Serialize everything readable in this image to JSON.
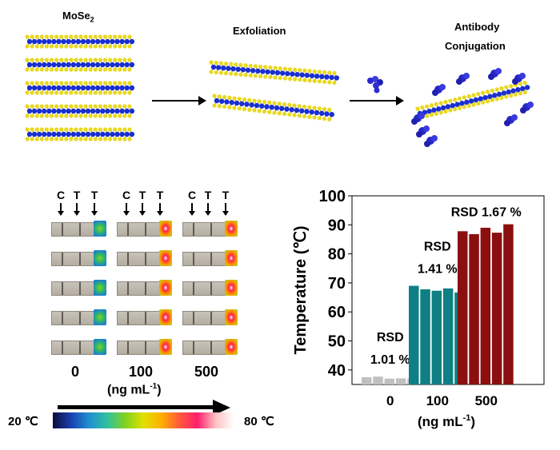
{
  "schematic": {
    "label_mose2": "MoSe",
    "label_mose2_sub": "2",
    "label_exfoliation": "Exfoliation",
    "label_antibody_line1": "Antibody",
    "label_antibody_line2": "Conjugation"
  },
  "strips": {
    "columns": [
      {
        "labels": [
          "C",
          "T",
          "T"
        ],
        "group": "0",
        "state": "cold"
      },
      {
        "labels": [
          "C",
          "T",
          "T"
        ],
        "group": "100",
        "state": "hot"
      },
      {
        "labels": [
          "C",
          "T",
          "T"
        ],
        "group": "500",
        "state": "hot"
      }
    ],
    "units": "(ng mL",
    "units_sup": "-1",
    "units_close": ")",
    "rows": 5
  },
  "colorbar": {
    "min_label": "20 ℃",
    "max_label": "80 ℃",
    "colors": [
      "#0b0b3a",
      "#1b3fb0",
      "#1f8fd0",
      "#2fc0a0",
      "#7ed321",
      "#e0e000",
      "#ffb000",
      "#ff5a3c",
      "#ff1e6e",
      "#ffc0c0",
      "#ffffff"
    ]
  },
  "chart_data": {
    "type": "bar",
    "ylabel": "Temperature (℃)",
    "xlabel": "(ng mL-1)",
    "xlabel_main": "(ng mL",
    "xlabel_sup": "-1",
    "xlabel_close": ")",
    "ylim": [
      35,
      100
    ],
    "yticks": [
      40,
      50,
      60,
      70,
      80,
      90,
      100
    ],
    "groups": [
      {
        "category": "0",
        "values": [
          37.5,
          37.7,
          37.0,
          37.1,
          37.1
        ],
        "color": "#c0c0c0",
        "rsd_line1": "RSD",
        "rsd_line2": "1.01 %"
      },
      {
        "category": "100",
        "values": [
          69.0,
          67.8,
          67.3,
          68.1,
          66.7
        ],
        "color": "#0f7f84",
        "rsd_line1": "RSD",
        "rsd_line2": "1.41 %"
      },
      {
        "category": "500",
        "values": [
          87.8,
          86.8,
          89.0,
          87.3,
          90.2
        ],
        "color": "#8b0f0f",
        "rsd_line1": "RSD 1.67 %",
        "rsd_line2": ""
      }
    ]
  }
}
